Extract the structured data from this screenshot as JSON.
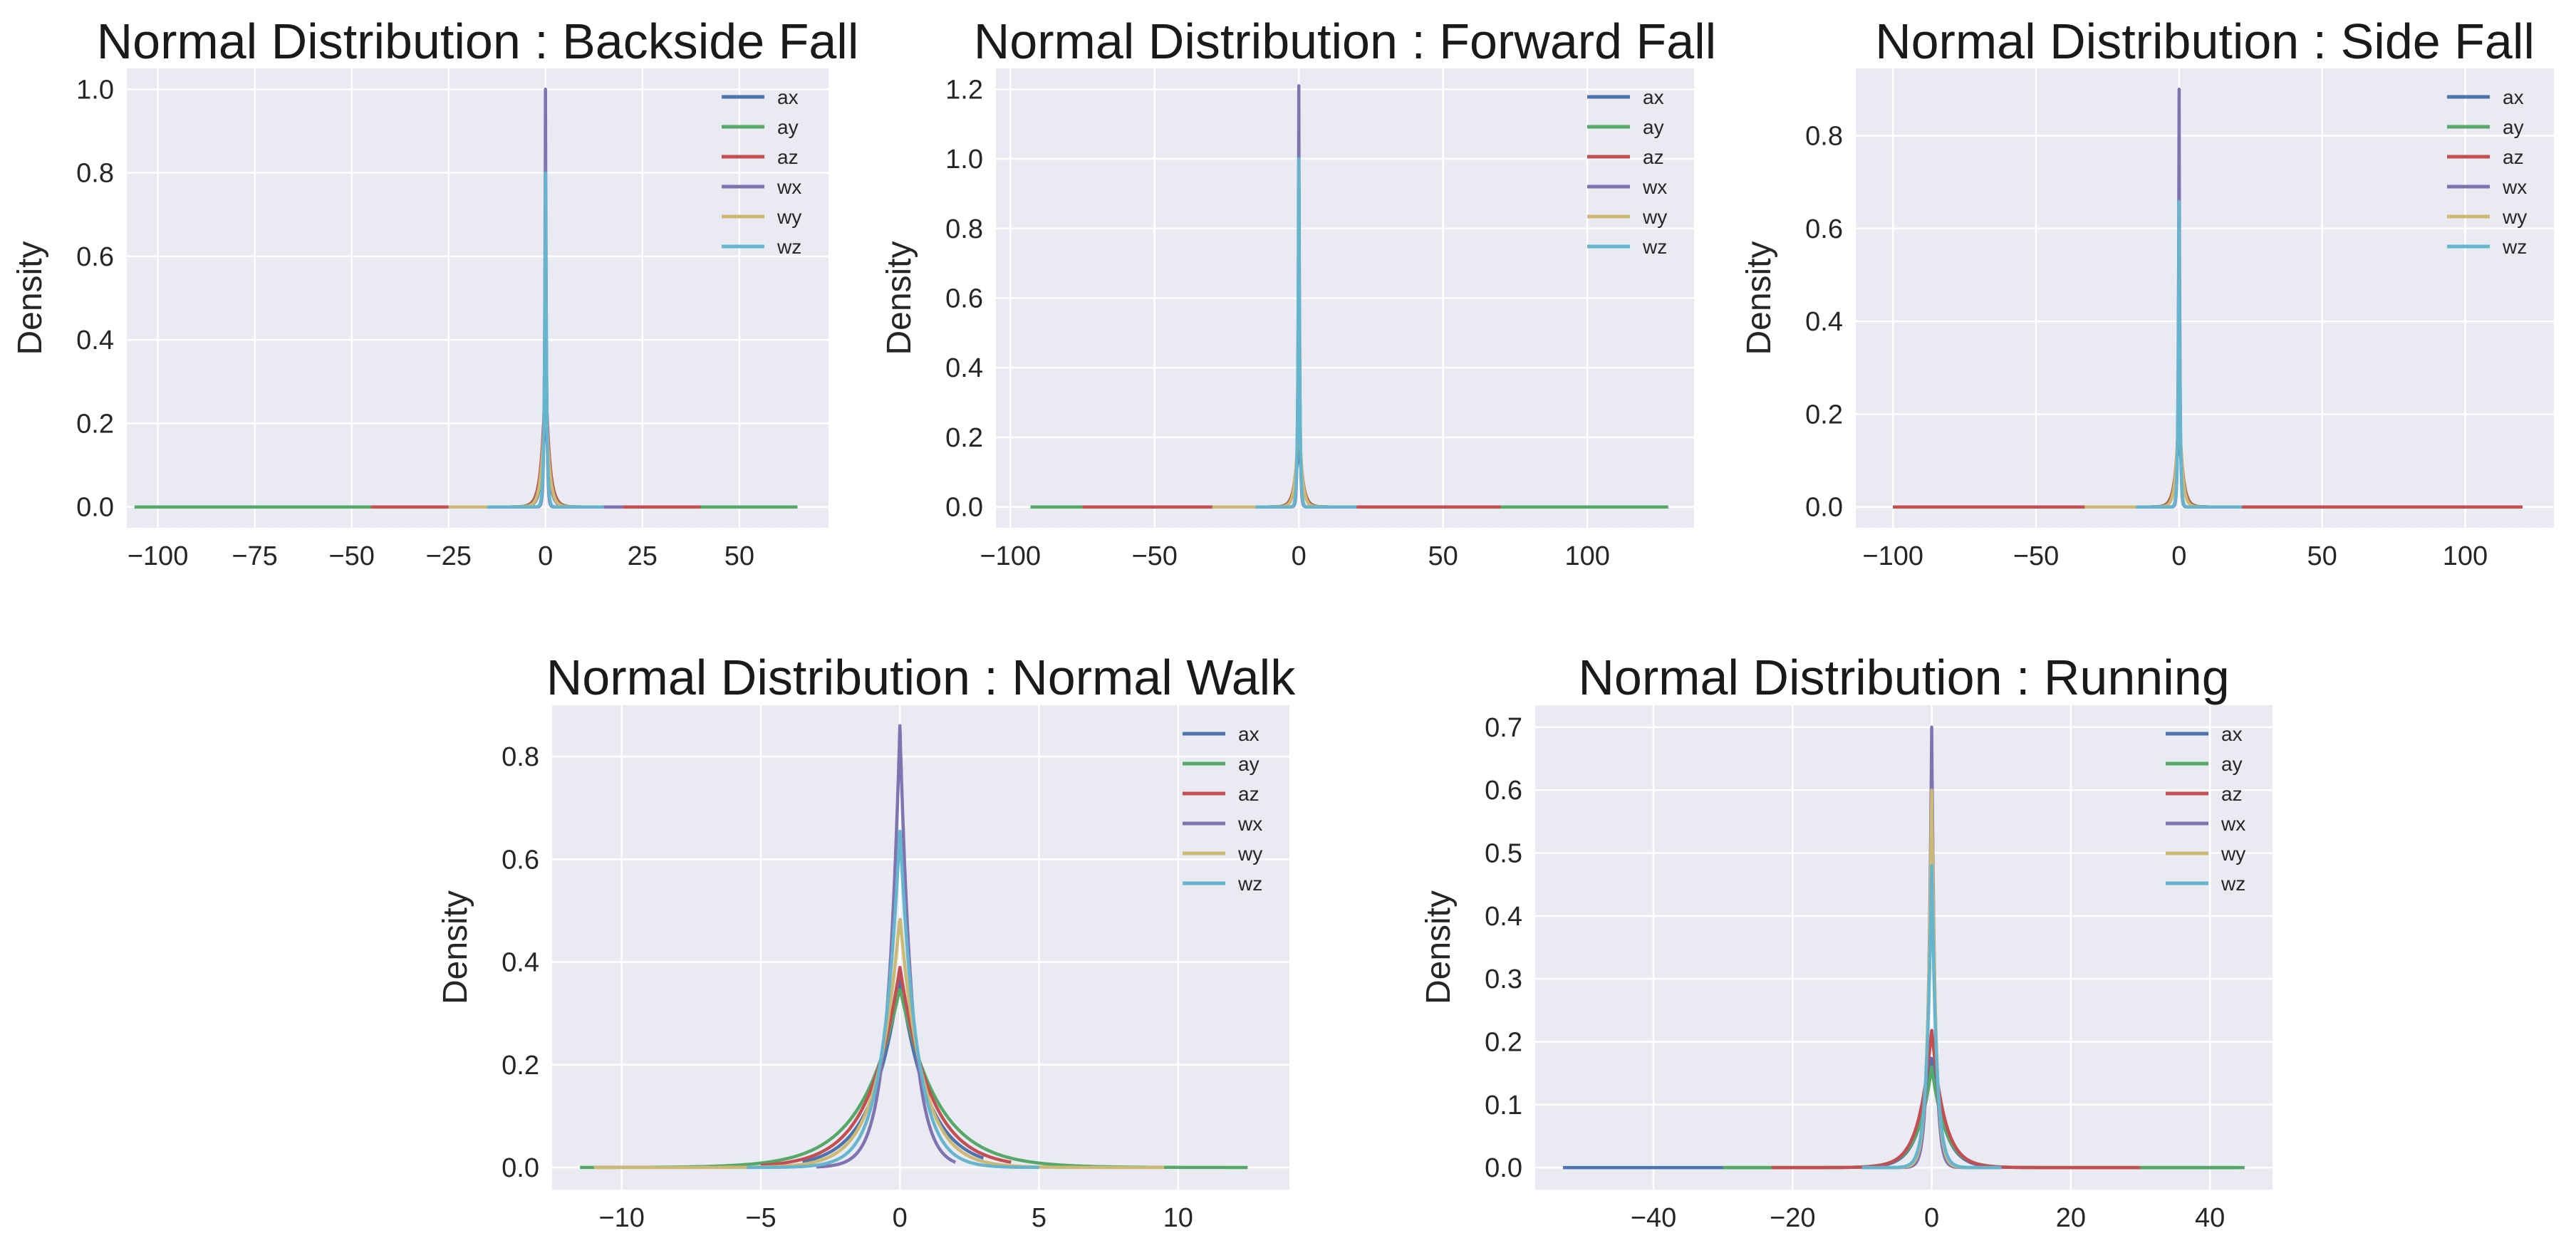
{
  "chart_data": [
    {
      "type": "line",
      "title": "Normal Distribution : Backside Fall",
      "xlabel": "",
      "ylabel": "Density",
      "xlim": [
        -108,
        73
      ],
      "ylim": [
        -0.05,
        1.05
      ],
      "xticks": [
        -100,
        -75,
        -50,
        -25,
        0,
        25,
        50
      ],
      "xtick_labels": [
        "−100",
        "−75",
        "−50",
        "−25",
        "0",
        "25",
        "50"
      ],
      "yticks": [
        0.0,
        0.2,
        0.4,
        0.6,
        0.8,
        1.0
      ],
      "ytick_labels": [
        "0.0",
        "0.2",
        "0.4",
        "0.6",
        "0.8",
        "1.0"
      ],
      "legend": [
        "ax",
        "ay",
        "az",
        "wx",
        "wy",
        "wz"
      ],
      "series": [
        {
          "name": "ax",
          "range": [
            -106,
            65
          ],
          "peak": 0.25,
          "width": 0.9
        },
        {
          "name": "ay",
          "range": [
            -106,
            65
          ],
          "peak": 0.28,
          "width": 1.1
        },
        {
          "name": "az",
          "range": [
            -45,
            40
          ],
          "peak": 0.33,
          "width": 1.0
        },
        {
          "name": "wx",
          "range": [
            -20,
            20
          ],
          "peak": 1.0,
          "width": 0.25
        },
        {
          "name": "wy",
          "range": [
            -25,
            15
          ],
          "peak": 0.3,
          "width": 0.9
        },
        {
          "name": "wz",
          "range": [
            -15,
            15
          ],
          "peak": 0.8,
          "width": 0.3
        }
      ]
    },
    {
      "type": "line",
      "title": "Normal Distribution : Forward Fall",
      "xlabel": "",
      "ylabel": "Density",
      "xlim": [
        -105,
        137
      ],
      "ylim": [
        -0.06,
        1.26
      ],
      "xticks": [
        -100,
        -50,
        0,
        50,
        100
      ],
      "xtick_labels": [
        "−100",
        "−50",
        "0",
        "50",
        "100"
      ],
      "yticks": [
        0.0,
        0.2,
        0.4,
        0.6,
        0.8,
        1.0,
        1.2
      ],
      "ytick_labels": [
        "0.0",
        "0.2",
        "0.4",
        "0.6",
        "0.8",
        "1.0",
        "1.2"
      ],
      "legend": [
        "ax",
        "ay",
        "az",
        "wx",
        "wy",
        "wz"
      ],
      "series": [
        {
          "name": "ax",
          "range": [
            -93,
            128
          ],
          "peak": 0.2,
          "width": 1.2
        },
        {
          "name": "ay",
          "range": [
            -93,
            128
          ],
          "peak": 0.22,
          "width": 1.3
        },
        {
          "name": "az",
          "range": [
            -75,
            70
          ],
          "peak": 0.25,
          "width": 1.2
        },
        {
          "name": "wx",
          "range": [
            -20,
            20
          ],
          "peak": 1.21,
          "width": 0.3
        },
        {
          "name": "wy",
          "range": [
            -30,
            20
          ],
          "peak": 0.3,
          "width": 1.0
        },
        {
          "name": "wz",
          "range": [
            -15,
            20
          ],
          "peak": 1.0,
          "width": 0.35
        }
      ]
    },
    {
      "type": "line",
      "title": "Normal Distribution : Side Fall",
      "xlabel": "",
      "ylabel": "Density",
      "xlim": [
        -113,
        131
      ],
      "ylim": [
        -0.045,
        0.945
      ],
      "xticks": [
        -100,
        -50,
        0,
        50,
        100
      ],
      "xtick_labels": [
        "−100",
        "−50",
        "0",
        "50",
        "100"
      ],
      "yticks": [
        0.0,
        0.2,
        0.4,
        0.6,
        0.8
      ],
      "ytick_labels": [
        "0.0",
        "0.2",
        "0.4",
        "0.6",
        "0.8"
      ],
      "legend": [
        "ax",
        "ay",
        "az",
        "wx",
        "wy",
        "wz"
      ],
      "series": [
        {
          "name": "ax",
          "range": [
            -100,
            120
          ],
          "peak": 0.18,
          "width": 1.2
        },
        {
          "name": "ay",
          "range": [
            -100,
            120
          ],
          "peak": 0.2,
          "width": 1.3
        },
        {
          "name": "az",
          "range": [
            -100,
            120
          ],
          "peak": 0.22,
          "width": 1.2
        },
        {
          "name": "wx",
          "range": [
            -20,
            20
          ],
          "peak": 0.9,
          "width": 0.3
        },
        {
          "name": "wy",
          "range": [
            -33,
            20
          ],
          "peak": 0.25,
          "width": 1.0
        },
        {
          "name": "wz",
          "range": [
            -15,
            22
          ],
          "peak": 0.68,
          "width": 0.35
        }
      ]
    },
    {
      "type": "line",
      "title": "Normal Distribution : Normal Walk",
      "xlabel": "",
      "ylabel": "Density",
      "xlim": [
        -12.5,
        14
      ],
      "ylim": [
        -0.043,
        0.9
      ],
      "xticks": [
        -10,
        -5,
        0,
        5,
        10
      ],
      "xtick_labels": [
        "−10",
        "−5",
        "0",
        "5",
        "10"
      ],
      "yticks": [
        0.0,
        0.2,
        0.4,
        0.6,
        0.8
      ],
      "ytick_labels": [
        "0.0",
        "0.2",
        "0.4",
        "0.6",
        "0.8"
      ],
      "legend": [
        "ax",
        "ay",
        "az",
        "wx",
        "wy",
        "wz"
      ],
      "series": [
        {
          "name": "ax",
          "range": [
            -3.5,
            3
          ],
          "peak": 0.37,
          "width": 1.0
        },
        {
          "name": "ay",
          "range": [
            -11.5,
            12.5
          ],
          "peak": 0.35,
          "width": 1.35
        },
        {
          "name": "az",
          "range": [
            -5,
            4
          ],
          "peak": 0.39,
          "width": 1.1
        },
        {
          "name": "wx",
          "range": [
            -3,
            2
          ],
          "peak": 0.86,
          "width": 0.45
        },
        {
          "name": "wy",
          "range": [
            -11,
            9.5
          ],
          "peak": 0.49,
          "width": 0.8
        },
        {
          "name": "wz",
          "range": [
            -5.5,
            5
          ],
          "peak": 0.66,
          "width": 0.6
        }
      ]
    },
    {
      "type": "line",
      "title": "Normal Distribution : Running",
      "xlabel": "",
      "ylabel": "Density",
      "xlim": [
        -57,
        49
      ],
      "ylim": [
        -0.035,
        0.735
      ],
      "xticks": [
        -40,
        -20,
        0,
        20,
        40
      ],
      "xtick_labels": [
        "−40",
        "−20",
        "0",
        "20",
        "40"
      ],
      "yticks": [
        0.0,
        0.1,
        0.2,
        0.3,
        0.4,
        0.5,
        0.6,
        0.7
      ],
      "ytick_labels": [
        "0.0",
        "0.1",
        "0.2",
        "0.3",
        "0.4",
        "0.5",
        "0.6",
        "0.7"
      ],
      "legend": [
        "ax",
        "ay",
        "az",
        "wx",
        "wy",
        "wz"
      ],
      "series": [
        {
          "name": "ax",
          "range": [
            -53,
            44
          ],
          "peak": 0.18,
          "width": 1.8
        },
        {
          "name": "ay",
          "range": [
            -30,
            45
          ],
          "peak": 0.16,
          "width": 2.0
        },
        {
          "name": "az",
          "range": [
            -23,
            30
          ],
          "peak": 0.22,
          "width": 1.8
        },
        {
          "name": "wx",
          "range": [
            -10,
            10
          ],
          "peak": 0.7,
          "width": 0.5
        },
        {
          "name": "wy",
          "range": [
            -10,
            10
          ],
          "peak": 0.6,
          "width": 0.6
        },
        {
          "name": "wz",
          "range": [
            -10,
            10
          ],
          "peak": 0.48,
          "width": 0.7
        }
      ]
    }
  ],
  "colors": {
    "ax": "#4c72b0",
    "ay": "#55a868",
    "az": "#c44e52",
    "wx": "#8172b2",
    "wy": "#ccb974",
    "wz": "#64b5cd",
    "panel_bg": "#eaeaf2",
    "grid": "#ffffff"
  }
}
